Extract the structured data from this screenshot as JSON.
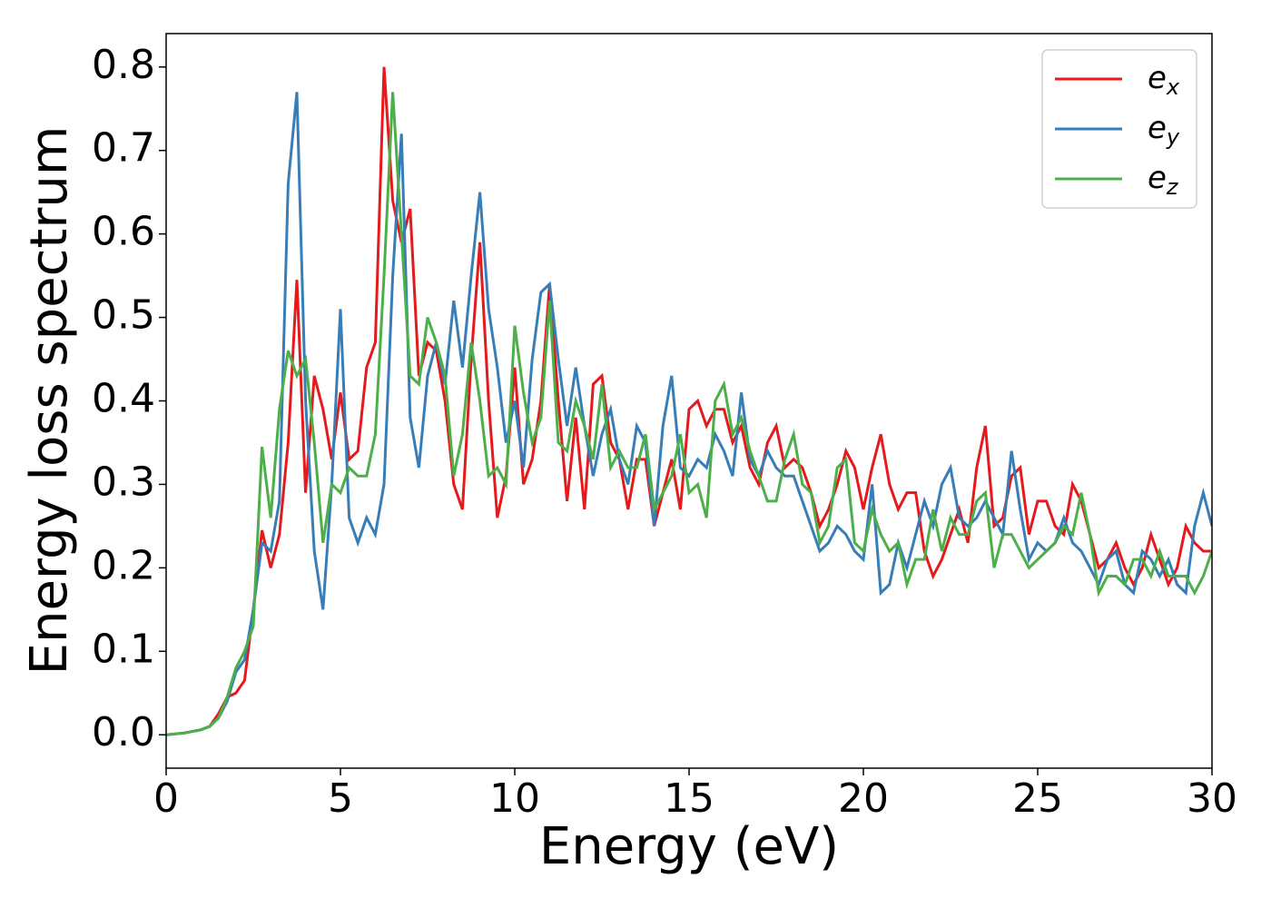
{
  "chart_data": {
    "type": "line",
    "x_label": "Energy (eV)",
    "y_label": "Energy loss spectrum",
    "x": [
      0,
      0.25,
      0.5,
      0.75,
      1,
      1.25,
      1.5,
      1.75,
      2,
      2.25,
      2.5,
      2.75,
      3,
      3.25,
      3.5,
      3.75,
      4,
      4.25,
      4.5,
      4.75,
      5,
      5.25,
      5.5,
      5.75,
      6,
      6.25,
      6.5,
      6.75,
      7,
      7.25,
      7.5,
      7.75,
      8,
      8.25,
      8.5,
      8.75,
      9,
      9.25,
      9.5,
      9.75,
      10,
      10.25,
      10.5,
      10.75,
      11,
      11.25,
      11.5,
      11.75,
      12,
      12.25,
      12.5,
      12.75,
      13,
      13.25,
      13.5,
      13.75,
      14,
      14.25,
      14.5,
      14.75,
      15,
      15.25,
      15.5,
      15.75,
      16,
      16.25,
      16.5,
      16.75,
      17,
      17.25,
      17.5,
      17.75,
      18,
      18.25,
      18.5,
      18.75,
      19,
      19.25,
      19.5,
      19.75,
      20,
      20.25,
      20.5,
      20.75,
      21,
      21.25,
      21.5,
      21.75,
      22,
      22.25,
      22.5,
      22.75,
      23,
      23.25,
      23.5,
      23.75,
      24,
      24.25,
      24.5,
      24.75,
      25,
      25.25,
      25.5,
      25.75,
      26,
      26.25,
      26.5,
      26.75,
      27,
      27.25,
      27.5,
      27.75,
      28,
      28.25,
      28.5,
      28.75,
      29,
      29.25,
      29.5,
      29.75,
      30
    ],
    "series": [
      {
        "name": "e_x",
        "color": "#e41a1c",
        "values": [
          0,
          0.001,
          0.002,
          0.004,
          0.006,
          0.01,
          0.025,
          0.045,
          0.05,
          0.065,
          0.15,
          0.245,
          0.2,
          0.24,
          0.35,
          0.545,
          0.29,
          0.43,
          0.39,
          0.33,
          0.41,
          0.33,
          0.34,
          0.44,
          0.47,
          0.8,
          0.64,
          0.59,
          0.63,
          0.43,
          0.47,
          0.46,
          0.4,
          0.3,
          0.27,
          0.45,
          0.59,
          0.4,
          0.26,
          0.31,
          0.44,
          0.3,
          0.33,
          0.4,
          0.54,
          0.4,
          0.28,
          0.38,
          0.27,
          0.42,
          0.43,
          0.35,
          0.33,
          0.27,
          0.33,
          0.33,
          0.25,
          0.29,
          0.33,
          0.27,
          0.39,
          0.4,
          0.37,
          0.39,
          0.39,
          0.35,
          0.37,
          0.32,
          0.3,
          0.35,
          0.37,
          0.32,
          0.33,
          0.32,
          0.29,
          0.25,
          0.27,
          0.3,
          0.34,
          0.32,
          0.27,
          0.32,
          0.36,
          0.3,
          0.27,
          0.29,
          0.29,
          0.22,
          0.19,
          0.21,
          0.24,
          0.27,
          0.23,
          0.32,
          0.37,
          0.25,
          0.26,
          0.31,
          0.32,
          0.24,
          0.28,
          0.28,
          0.25,
          0.24,
          0.3,
          0.28,
          0.24,
          0.2,
          0.21,
          0.23,
          0.2,
          0.18,
          0.2,
          0.24,
          0.21,
          0.18,
          0.2,
          0.25,
          0.23,
          0.22,
          0.22
        ]
      },
      {
        "name": "e_y",
        "color": "#377eb8",
        "values": [
          0,
          0.001,
          0.002,
          0.004,
          0.006,
          0.01,
          0.02,
          0.04,
          0.075,
          0.09,
          0.15,
          0.23,
          0.22,
          0.28,
          0.66,
          0.77,
          0.4,
          0.22,
          0.15,
          0.3,
          0.51,
          0.26,
          0.23,
          0.26,
          0.24,
          0.3,
          0.55,
          0.72,
          0.38,
          0.32,
          0.43,
          0.47,
          0.42,
          0.52,
          0.44,
          0.55,
          0.65,
          0.51,
          0.44,
          0.35,
          0.4,
          0.32,
          0.45,
          0.53,
          0.54,
          0.45,
          0.37,
          0.44,
          0.37,
          0.31,
          0.36,
          0.39,
          0.33,
          0.3,
          0.37,
          0.35,
          0.25,
          0.37,
          0.43,
          0.32,
          0.31,
          0.33,
          0.32,
          0.36,
          0.34,
          0.31,
          0.41,
          0.33,
          0.31,
          0.34,
          0.32,
          0.31,
          0.31,
          0.28,
          0.25,
          0.22,
          0.23,
          0.25,
          0.24,
          0.22,
          0.21,
          0.3,
          0.17,
          0.18,
          0.23,
          0.2,
          0.24,
          0.28,
          0.25,
          0.3,
          0.32,
          0.26,
          0.25,
          0.26,
          0.28,
          0.26,
          0.24,
          0.34,
          0.27,
          0.21,
          0.23,
          0.22,
          0.23,
          0.26,
          0.23,
          0.22,
          0.2,
          0.18,
          0.21,
          0.22,
          0.18,
          0.17,
          0.22,
          0.21,
          0.19,
          0.21,
          0.18,
          0.17,
          0.25,
          0.29,
          0.25
        ]
      },
      {
        "name": "e_z",
        "color": "#4daf4a",
        "values": [
          0,
          0.001,
          0.002,
          0.004,
          0.006,
          0.01,
          0.02,
          0.045,
          0.08,
          0.1,
          0.13,
          0.345,
          0.26,
          0.39,
          0.46,
          0.43,
          0.45,
          0.35,
          0.23,
          0.3,
          0.29,
          0.32,
          0.31,
          0.31,
          0.36,
          0.55,
          0.77,
          0.6,
          0.43,
          0.42,
          0.5,
          0.47,
          0.43,
          0.31,
          0.36,
          0.47,
          0.4,
          0.31,
          0.32,
          0.3,
          0.49,
          0.41,
          0.35,
          0.38,
          0.52,
          0.35,
          0.34,
          0.4,
          0.37,
          0.33,
          0.42,
          0.32,
          0.34,
          0.32,
          0.32,
          0.36,
          0.27,
          0.29,
          0.31,
          0.36,
          0.29,
          0.3,
          0.26,
          0.4,
          0.42,
          0.36,
          0.38,
          0.34,
          0.31,
          0.28,
          0.28,
          0.33,
          0.36,
          0.3,
          0.29,
          0.23,
          0.25,
          0.32,
          0.33,
          0.23,
          0.22,
          0.27,
          0.24,
          0.22,
          0.23,
          0.18,
          0.21,
          0.21,
          0.27,
          0.22,
          0.26,
          0.24,
          0.24,
          0.28,
          0.29,
          0.2,
          0.24,
          0.24,
          0.22,
          0.2,
          0.21,
          0.22,
          0.23,
          0.25,
          0.24,
          0.29,
          0.24,
          0.17,
          0.19,
          0.19,
          0.18,
          0.21,
          0.21,
          0.19,
          0.22,
          0.19,
          0.19,
          0.19,
          0.17,
          0.19,
          0.22
        ]
      }
    ],
    "xlim": [
      0,
      30
    ],
    "xticks": [
      0,
      5,
      10,
      15,
      20,
      25,
      30
    ],
    "ylim": [
      -0.04,
      0.84
    ],
    "yticks": [
      {
        "value": 0,
        "label": "0.0"
      },
      0.1,
      0.2,
      0.3,
      0.4,
      0.5,
      0.6,
      0.7,
      0.8
    ],
    "grid": false,
    "legend": "upper right"
  }
}
